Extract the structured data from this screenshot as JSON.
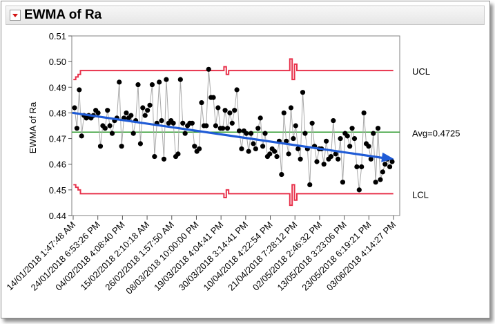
{
  "panel": {
    "title": "EWMA of Ra",
    "toggle_icon": "red-disclosure-triangle-icon"
  },
  "chart_data": {
    "type": "line",
    "title": "",
    "ylabel": "EWMA of Ra",
    "xlabel": "",
    "ylim": [
      0.44,
      0.51
    ],
    "y_ticks": [
      "0.44",
      "0.45",
      "0.46",
      "0.47",
      "0.48",
      "0.49",
      "0.50",
      "0.51"
    ],
    "x_tick_labels": [
      "14/01/2018 1:47:48 AM",
      "24/01/2018 6:53:26 PM",
      "04/02/2018 4:08:40 PM",
      "15/02/2018 2:10:18 AM",
      "26/02/2018 1:57:50 AM",
      "08/03/2018 10:00:00 PM",
      "19/03/2018 4:04:41 PM",
      "30/03/2018 3:14:41 PM",
      "10/04/2018 4:22:54 PM",
      "21/04/2018 7:28:12 PM",
      "02/05/2018 2:46:32 PM",
      "13/05/2018 3:23:06 PM",
      "23/05/2018 6:19:21 PM",
      "03/06/2018 4:14:27 PM"
    ],
    "center_line": {
      "label": "Avg=0.4725",
      "value": 0.4725,
      "color": "#2e9b2e"
    },
    "ucl": {
      "label": "UCL",
      "base": 0.4965,
      "color": "#e8304a"
    },
    "lcl": {
      "label": "LCL",
      "base": 0.4485,
      "color": "#e8304a"
    },
    "limit_spikes": [
      {
        "index": 0,
        "ucl": 0.493,
        "lcl": 0.452
      },
      {
        "index": 1,
        "ucl": 0.494,
        "lcl": 0.451
      },
      {
        "index": 2,
        "ucl": 0.495,
        "lcl": 0.45
      },
      {
        "index": 64,
        "ucl": 0.498,
        "lcl": 0.447
      },
      {
        "index": 65,
        "ucl": 0.495,
        "lcl": 0.45
      },
      {
        "index": 92,
        "ucl": 0.501,
        "lcl": 0.444
      },
      {
        "index": 93,
        "ucl": 0.493,
        "lcl": 0.452
      },
      {
        "index": 94,
        "ucl": 0.499,
        "lcl": 0.446
      }
    ],
    "trend": {
      "from": 0.48,
      "to": 0.462,
      "color": "#1f5bd6"
    },
    "series": [
      {
        "values": [
          0.482,
          0.474,
          0.489,
          0.471,
          0.479,
          0.478,
          0.479,
          0.478,
          0.479,
          0.481,
          0.48,
          0.467,
          0.475,
          0.474,
          0.481,
          0.475,
          0.472,
          0.477,
          0.478,
          0.492,
          0.467,
          0.478,
          0.48,
          0.478,
          0.479,
          0.472,
          0.477,
          0.491,
          0.468,
          0.482,
          0.479,
          0.481,
          0.483,
          0.491,
          0.463,
          0.476,
          0.492,
          0.477,
          0.462,
          0.493,
          0.476,
          0.477,
          0.476,
          0.463,
          0.464,
          0.493,
          0.476,
          0.472,
          0.475,
          0.476,
          0.476,
          0.467,
          0.465,
          0.466,
          0.484,
          0.475,
          0.475,
          0.497,
          0.486,
          0.486,
          0.475,
          0.482,
          0.474,
          0.474,
          0.481,
          0.474,
          0.48,
          0.476,
          0.481,
          0.489,
          0.473,
          0.466,
          0.473,
          0.472,
          0.465,
          0.472,
          0.468,
          0.466,
          0.474,
          0.478,
          0.467,
          0.472,
          0.463,
          0.464,
          0.466,
          0.465,
          0.463,
          0.469,
          0.456,
          0.48,
          0.469,
          0.464,
          0.482,
          0.47,
          0.475,
          0.466,
          0.462,
          0.488,
          0.472,
          0.466,
          0.452,
          0.476,
          0.467,
          0.461,
          0.466,
          0.466,
          0.46,
          0.469,
          0.462,
          0.463,
          0.477,
          0.464,
          0.462,
          0.47,
          0.453,
          0.472,
          0.471,
          0.467,
          0.474,
          0.47,
          0.459,
          0.45,
          0.459,
          0.48,
          0.468,
          0.467,
          0.462,
          0.472,
          0.453,
          0.474,
          0.454,
          0.457,
          0.46,
          0.462,
          0.459,
          0.461
        ]
      }
    ]
  }
}
